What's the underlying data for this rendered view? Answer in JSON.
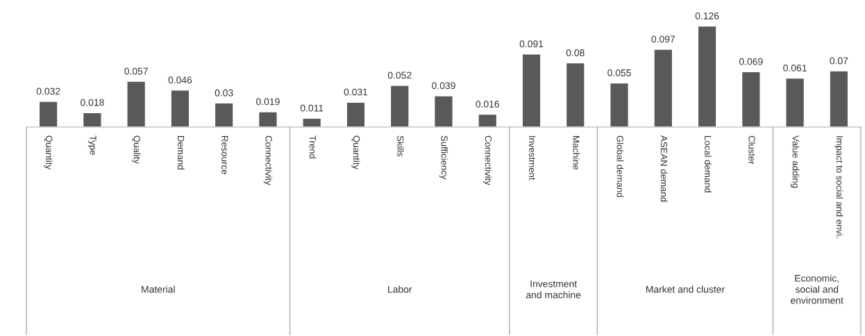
{
  "chart_data": {
    "type": "bar",
    "data_labels": true,
    "categories": [
      "Quantity",
      "Type",
      "Quality",
      "Demand",
      "Resource",
      "Connectivity",
      "Trend",
      "Quantity",
      "Skills",
      "Sufficiency",
      "Connectivity",
      "Investment",
      "Machine",
      "Global demand",
      "ASEAN demand",
      "Local demand",
      "Cluster",
      "Value adding",
      "Impact to social and envi."
    ],
    "values": [
      0.032,
      0.018,
      0.057,
      0.046,
      0.03,
      0.019,
      0.011,
      0.031,
      0.052,
      0.039,
      0.016,
      0.091,
      0.08,
      0.055,
      0.097,
      0.126,
      0.069,
      0.061,
      0.07
    ],
    "color": "#595959",
    "annotations": [
      "Material",
      "Labor",
      "Investment and machine",
      "Market and cluster",
      "Economic, social and environment"
    ]
  }
}
